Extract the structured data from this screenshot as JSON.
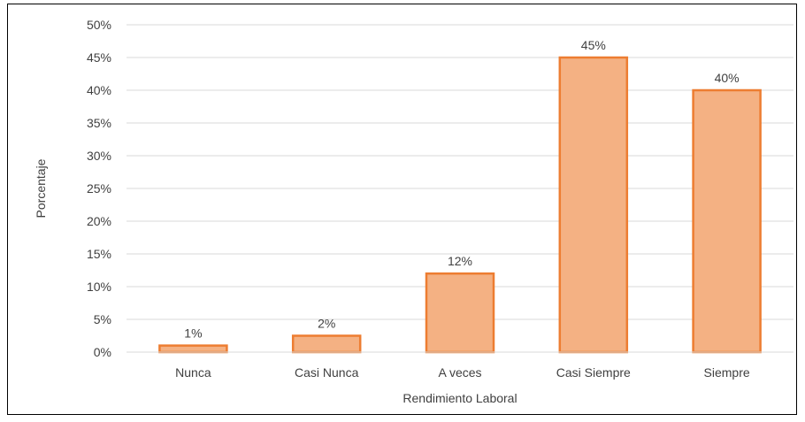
{
  "chart_data": {
    "type": "bar",
    "categories": [
      "Nunca",
      "Casi Nunca",
      "A veces",
      "Casi Siempre",
      "Siempre"
    ],
    "values": [
      1,
      2.5,
      12,
      45,
      40
    ],
    "data_labels": [
      "1%",
      "2%",
      "12%",
      "45%",
      "40%"
    ],
    "xlabel": "Rendimiento Laboral",
    "ylabel": "Porcentaje",
    "ylim": [
      0,
      50
    ],
    "yticks": [
      "0%",
      "5%",
      "10%",
      "15%",
      "20%",
      "25%",
      "30%",
      "35%",
      "40%",
      "45%",
      "50%"
    ],
    "grid": true,
    "legend": "none",
    "colors": {
      "bar_fill": "#F4B183",
      "bar_stroke": "#ED7D31",
      "grid": "#D9D9D9"
    }
  }
}
